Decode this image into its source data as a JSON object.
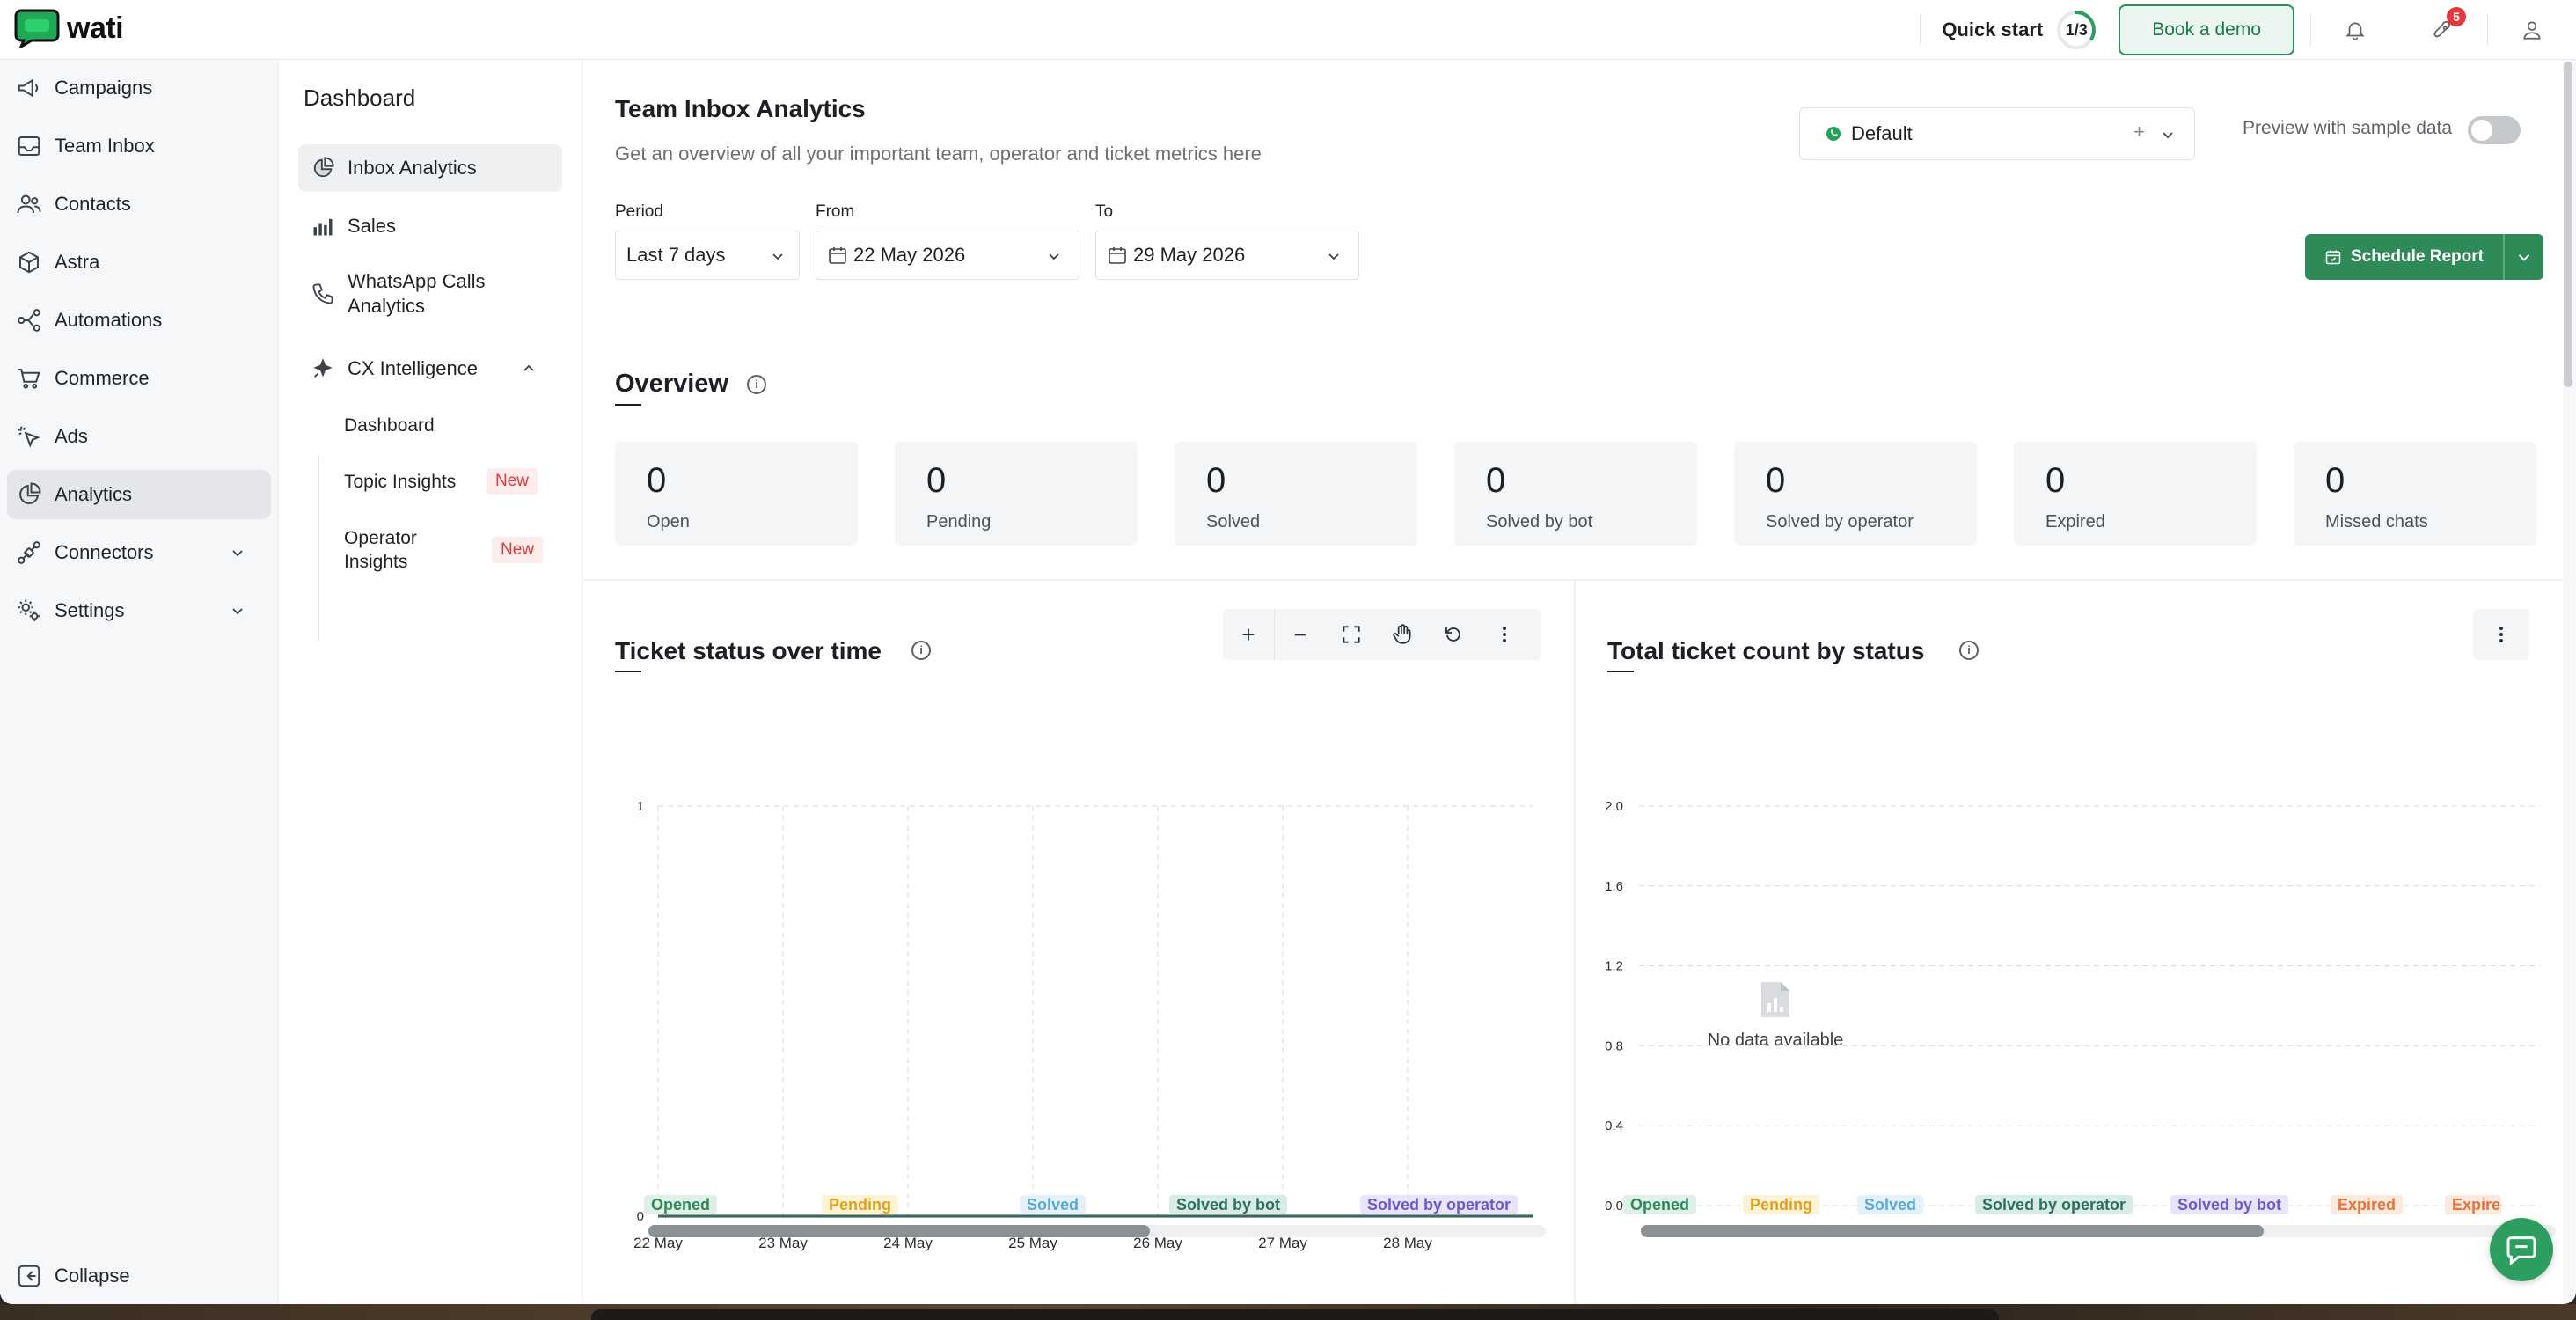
{
  "app": {
    "brand": "wati"
  },
  "topbar": {
    "quick_start_label": "Quick start",
    "quick_start_progress": "1/3",
    "quick_start_fraction": 0.333,
    "book_demo_label": "Book a demo",
    "notifications_badge": "5"
  },
  "nav": {
    "items": [
      {
        "label": "Campaigns",
        "icon": "megaphone-icon"
      },
      {
        "label": "Team Inbox",
        "icon": "inbox-icon"
      },
      {
        "label": "Contacts",
        "icon": "contacts-icon"
      },
      {
        "label": "Astra",
        "icon": "astra-icon"
      },
      {
        "label": "Automations",
        "icon": "automations-icon"
      },
      {
        "label": "Commerce",
        "icon": "cart-icon"
      },
      {
        "label": "Ads",
        "icon": "ads-icon"
      },
      {
        "label": "Analytics",
        "icon": "analytics-icon",
        "active": true
      },
      {
        "label": "Connectors",
        "icon": "connectors-icon"
      },
      {
        "label": "Settings",
        "icon": "settings-icon"
      }
    ],
    "collapse_label": "Collapse"
  },
  "subnav": {
    "title": "Dashboard",
    "items": [
      {
        "label": "Inbox Analytics",
        "active": true
      },
      {
        "label": "Sales"
      },
      {
        "label": "WhatsApp Calls Analytics"
      },
      {
        "label": "CX Intelligence"
      }
    ],
    "children": [
      {
        "label": "Dashboard"
      },
      {
        "label": "Topic Insights",
        "tag": "New"
      },
      {
        "label": "Operator Insights",
        "tag": "New"
      }
    ]
  },
  "main": {
    "title": "Team Inbox Analytics",
    "subtitle": "Get an overview of all your important team, operator and ticket metrics here",
    "channel_select": "Default",
    "channel_plus": "+",
    "preview_label": "Preview with sample data",
    "preview_enabled": false,
    "filters": {
      "period_label": "Period",
      "period_value": "Last 7 days",
      "from_label": "From",
      "from_value": "22 May 2026",
      "to_label": "To",
      "to_value": "29 May 2026"
    },
    "schedule_label": "Schedule Report",
    "overview_title": "Overview",
    "overview_cards": [
      {
        "value": "0",
        "label": "Open"
      },
      {
        "value": "0",
        "label": "Pending"
      },
      {
        "value": "0",
        "label": "Solved"
      },
      {
        "value": "0",
        "label": "Solved by bot"
      },
      {
        "value": "0",
        "label": "Solved by operator"
      },
      {
        "value": "0",
        "label": "Expired"
      },
      {
        "value": "0",
        "label": "Missed chats"
      }
    ],
    "toolbar": {
      "zoom_in": "+",
      "zoom_out": "−"
    },
    "ticket_status_title": "Ticket status over time",
    "total_count_title": "Total ticket count by status",
    "no_data": "No data available"
  },
  "colors": {
    "brand_green": "#2e8b57",
    "opened": "#2e8b57",
    "pending": "#e0a21b",
    "solved": "#5aa9d6",
    "solved_by_operator": "#2f6f62",
    "solved_by_bot": "#6a5acd",
    "expired": "#e8743b"
  },
  "chart_data": [
    {
      "type": "line",
      "title": "Ticket status over time",
      "x": [
        "22 May",
        "23 May",
        "24 May",
        "25 May",
        "26 May",
        "27 May",
        "28 May"
      ],
      "yticks": [
        "0",
        "1"
      ],
      "ylim": [
        0,
        1
      ],
      "series": [
        {
          "name": "Opened",
          "values": [
            0,
            0,
            0,
            0,
            0,
            0,
            0
          ]
        },
        {
          "name": "Pending",
          "values": [
            0,
            0,
            0,
            0,
            0,
            0,
            0
          ]
        },
        {
          "name": "Solved",
          "values": [
            0,
            0,
            0,
            0,
            0,
            0,
            0
          ]
        },
        {
          "name": "Solved by bot",
          "values": [
            0,
            0,
            0,
            0,
            0,
            0,
            0
          ]
        },
        {
          "name": "Solved by operator",
          "values": [
            0,
            0,
            0,
            0,
            0,
            0,
            0
          ]
        }
      ],
      "legend_position": "bottom",
      "grid": true
    },
    {
      "type": "bar",
      "title": "Total ticket count by status",
      "yticks": [
        "0.0",
        "0.4",
        "0.8",
        "1.2",
        "1.6",
        "2.0"
      ],
      "ylim": [
        0,
        2
      ],
      "legend": [
        "Opened",
        "Pending",
        "Solved",
        "Solved by operator",
        "Solved by bot",
        "Expired",
        "Expired"
      ],
      "values": [],
      "legend_position": "bottom",
      "grid": true
    }
  ]
}
